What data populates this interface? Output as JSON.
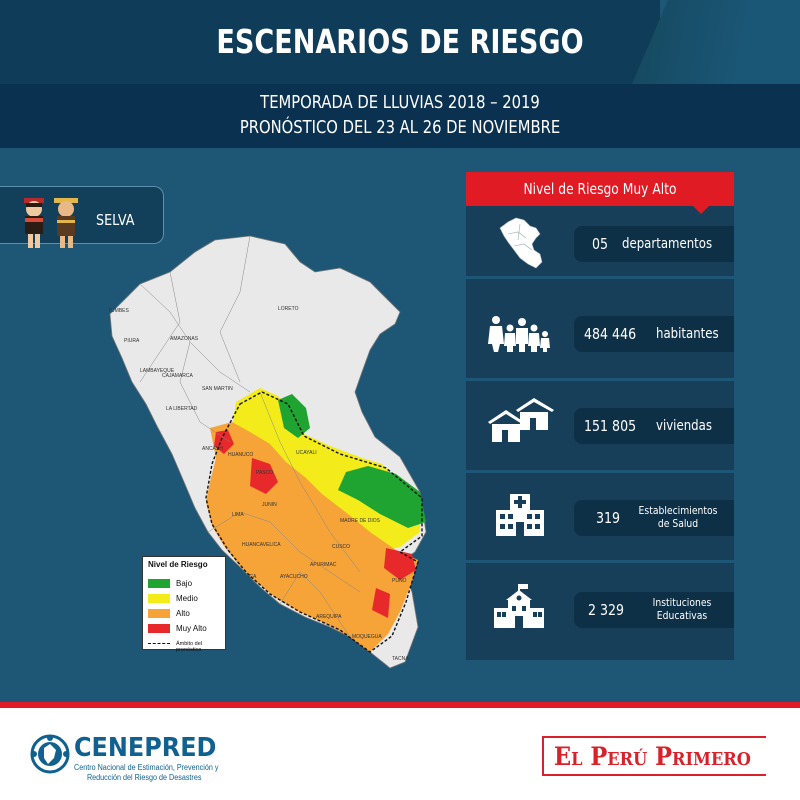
{
  "header": {
    "title": "ESCENARIOS DE RIESGO",
    "subtitle_line1": "TEMPORADA DE LLUVIAS 2018 – 2019",
    "subtitle_line2": "PRONÓSTICO DEL 23 AL 26 DE NOVIEMBRE"
  },
  "region": {
    "label": "SELVA",
    "icon": "indigenous-figures-icon"
  },
  "map": {
    "department_labels": [
      "TUMBES",
      "PIURA",
      "AMAZONAS",
      "LAMBAYEQUE",
      "CAJAMARCA",
      "LORETO",
      "SAN MARTIN",
      "LA LIBERTAD",
      "ANCASH",
      "HUANUCO",
      "PASCO",
      "UCAYALI",
      "LIMA",
      "JUNIN",
      "MADRE DE DIOS",
      "HUANCAVELICA",
      "CUSCO",
      "ICA",
      "AYACUCHO",
      "APURIMAC",
      "PUNO",
      "AREQUIPA",
      "MOQUEGUA",
      "TACNA"
    ],
    "legend": {
      "title": "Nivel de Riesgo",
      "items": [
        {
          "label": "Bajo",
          "color": "#1fa331"
        },
        {
          "label": "Medio",
          "color": "#f3ec1a"
        },
        {
          "label": "Alto",
          "color": "#f6a338"
        },
        {
          "label": "Muy Alto",
          "color": "#e8292b"
        }
      ],
      "note": "Ámbito del pronóstico"
    }
  },
  "stats": {
    "header": "Nivel de Riesgo Muy Alto",
    "items": [
      {
        "icon": "peru-map-icon",
        "number": "05",
        "unit": "departamentos"
      },
      {
        "icon": "people-icon",
        "number": "484 446",
        "unit": "habitantes"
      },
      {
        "icon": "houses-icon",
        "number": "151 805",
        "unit": "viviendas"
      },
      {
        "icon": "hospital-icon",
        "number": "319",
        "unit_line1": "Establecimientos",
        "unit_line2": "de Salud"
      },
      {
        "icon": "school-icon",
        "number": "2 329",
        "unit_line1": "Instituciones",
        "unit_line2": "Educativas"
      }
    ]
  },
  "footer": {
    "org_name": "CENEPRED",
    "org_sub_line1": "Centro Nacional de Estimación, Prevención y",
    "org_sub_line2": "Reducción del Riesgo de Desastres",
    "slogan": "El Perú Primero"
  },
  "colors": {
    "background": "#1d5775",
    "title_band": "#0f3c58",
    "accent_red": "#e01b24",
    "panel": "#173f5a",
    "pill": "#0e3047",
    "cenepred_blue": "#10618f"
  }
}
